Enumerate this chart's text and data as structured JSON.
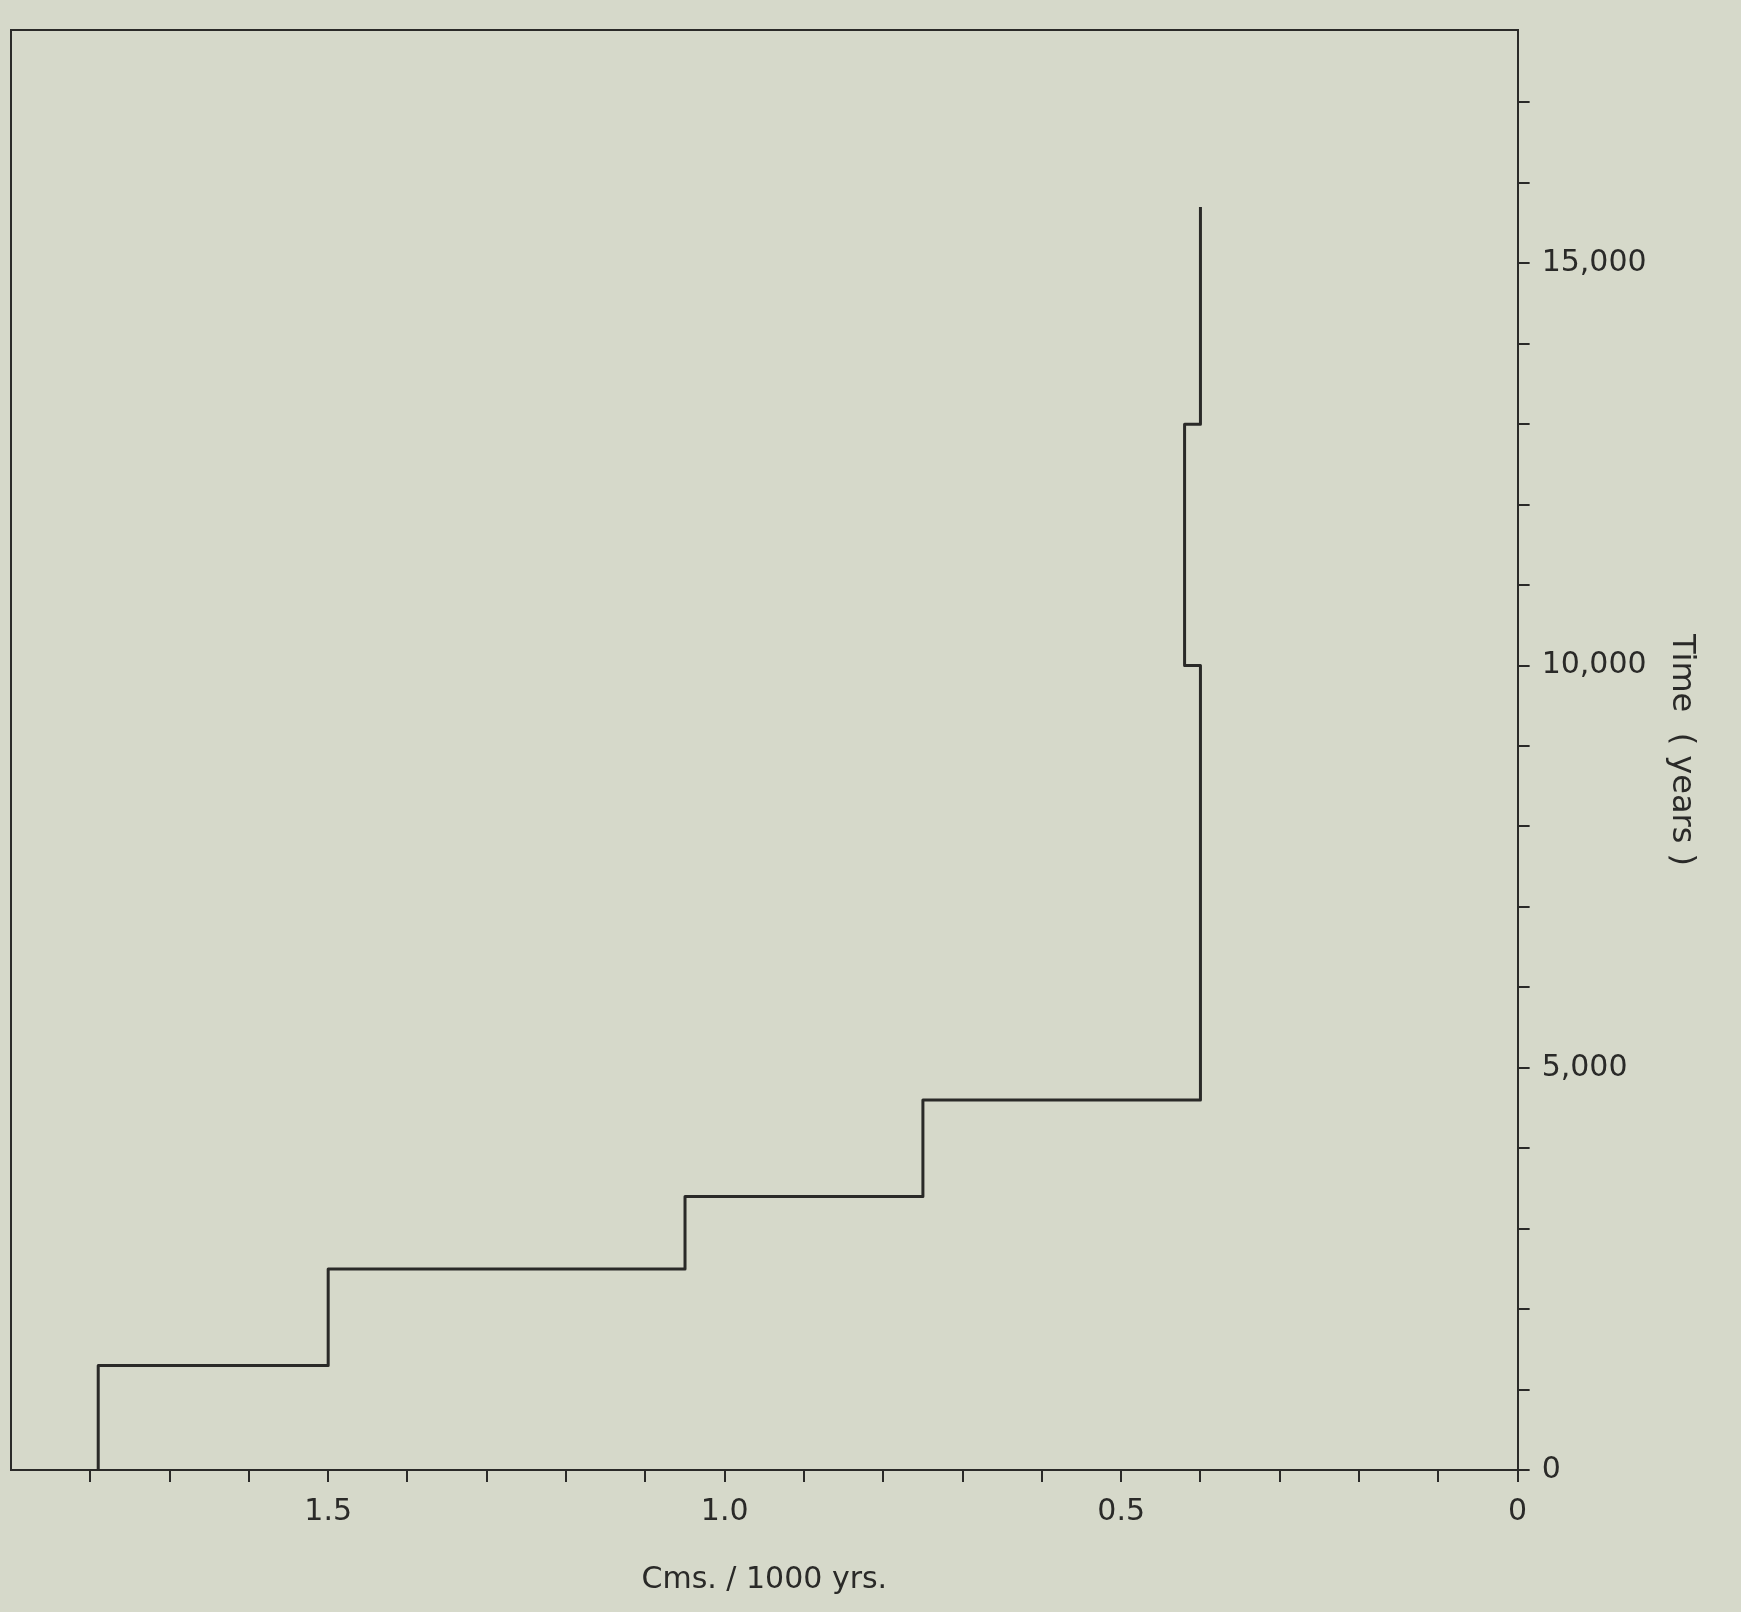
{
  "chart_data": {
    "type": "line",
    "xlabel": "Cms. / 1000 yrs.",
    "ylabel": "Time  ( years )",
    "x": [
      1.79,
      1.79,
      1.5,
      1.5,
      1.05,
      1.05,
      0.75,
      0.75,
      0.4,
      0.4,
      0.42,
      0.42,
      0.4,
      0.4
    ],
    "series": [
      {
        "color": "#2a2a28",
        "values": [
          0,
          1300,
          1300,
          2500,
          2500,
          3400,
          3400,
          4600,
          4600,
          10000,
          10000,
          13000,
          13000,
          15700
        ]
      }
    ],
    "ylim": [
      0,
      17900
    ],
    "yticks": [
      0,
      {
        "value": 1000,
        "label": null
      },
      {
        "value": 2000,
        "label": null
      },
      {
        "value": 3000,
        "label": null
      },
      {
        "value": 4000,
        "label": null
      },
      {
        "value": 5000,
        "label": "5,000"
      },
      {
        "value": 6000,
        "label": null
      },
      {
        "value": 7000,
        "label": null
      },
      {
        "value": 8000,
        "label": null
      },
      {
        "value": 9000,
        "label": null
      },
      {
        "value": 10000,
        "label": "10,000"
      },
      {
        "value": 11000,
        "label": null
      },
      {
        "value": 12000,
        "label": null
      },
      {
        "value": 13000,
        "label": null
      },
      {
        "value": 14000,
        "label": null
      },
      {
        "value": 15000,
        "label": "15,000"
      },
      {
        "value": 16000,
        "label": null
      },
      {
        "value": 17000,
        "label": null
      }
    ],
    "xlim": [
      1.9,
      0
    ],
    "xticks": [
      0,
      {
        "value": 0.1,
        "label": null
      },
      {
        "value": 0.2,
        "label": null
      },
      {
        "value": 0.3,
        "label": null
      },
      {
        "value": 0.4,
        "label": null
      },
      0.5,
      {
        "value": 0.6,
        "label": null
      },
      {
        "value": 0.7,
        "label": null
      },
      {
        "value": 0.8,
        "label": null
      },
      {
        "value": 0.9,
        "label": null
      },
      {
        "value": 1,
        "label": "1.0"
      },
      {
        "value": 1.1,
        "label": null
      },
      {
        "value": 1.2,
        "label": null
      },
      {
        "value": 1.3,
        "label": null
      },
      {
        "value": 1.4,
        "label": null
      },
      1.5,
      {
        "value": 1.6,
        "label": null
      },
      {
        "value": 1.7,
        "label": null
      },
      {
        "value": 1.8,
        "label": null
      }
    ],
    "grid": false,
    "legend": false
  }
}
